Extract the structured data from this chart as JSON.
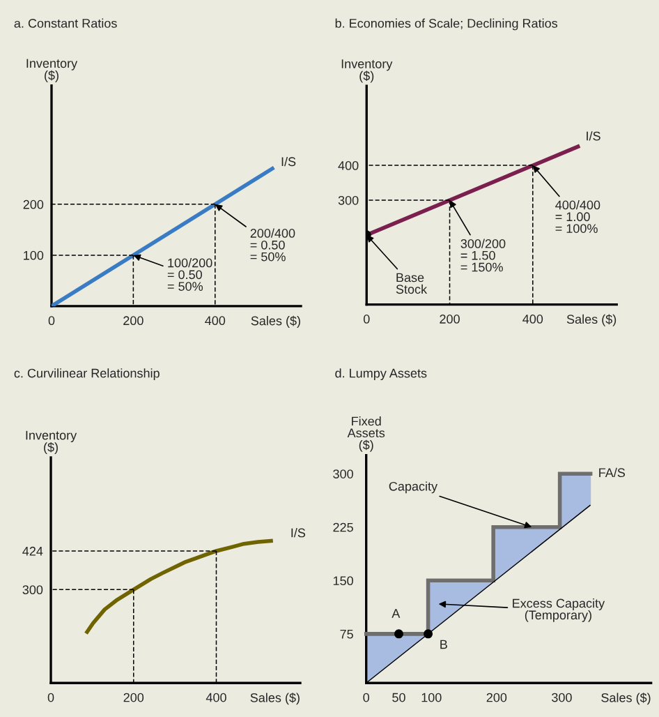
{
  "chart_data": [
    {
      "type": "line",
      "title": "a. Constant Ratios",
      "xlabel": "Sales ($)",
      "ylabel": "Inventory\n($)",
      "xlim": [
        0,
        610
      ],
      "ylim": [
        0,
        433
      ],
      "xticks": [
        0,
        200,
        400
      ],
      "yticks": [
        100,
        200
      ],
      "series": [
        {
          "x": [
            200,
            0
          ],
          "values": [
            100,
            100
          ],
          "color": "#000000",
          "line_style": "dashed"
        },
        {
          "x": [
            200,
            200
          ],
          "values": [
            100,
            0
          ],
          "color": "#000000",
          "line_style": "dashed"
        },
        {
          "x": [
            400,
            0
          ],
          "values": [
            200,
            200
          ],
          "color": "#000000",
          "line_style": "dashed"
        },
        {
          "x": [
            400,
            400
          ],
          "values": [
            200,
            0
          ],
          "color": "#000000",
          "line_style": "dashed"
        },
        {
          "x": [
            0,
            544
          ],
          "values": [
            0,
            272
          ],
          "color": "#3a7cc4",
          "line_style": "solid"
        }
      ],
      "annotations": [
        {
          "text": "I/S",
          "x": 544,
          "y": 272
        },
        {
          "text": "100/200\n= 0.50\n= 50%",
          "x": 200,
          "y": 100
        },
        {
          "text": "200/400\n= 0.50\n= 50%",
          "x": 400,
          "y": 200
        }
      ]
    },
    {
      "type": "line",
      "title": "b. Economies of Scale; Declining Ratios",
      "xlabel": "Sales ($)",
      "ylabel": "Inventory\n($)",
      "xlim": [
        0,
        602
      ],
      "ylim": [
        0,
        628
      ],
      "xticks": [
        0,
        200,
        400
      ],
      "yticks": [
        300,
        400
      ],
      "series": [
        {
          "x": [
            200,
            0
          ],
          "values": [
            300,
            300
          ],
          "color": "#000000",
          "line_style": "dashed"
        },
        {
          "x": [
            200,
            200
          ],
          "values": [
            300,
            0
          ],
          "color": "#000000",
          "line_style": "dashed"
        },
        {
          "x": [
            400,
            0
          ],
          "values": [
            400,
            400
          ],
          "color": "#000000",
          "line_style": "dashed"
        },
        {
          "x": [
            400,
            400
          ],
          "values": [
            400,
            0
          ],
          "color": "#000000",
          "line_style": "dashed"
        },
        {
          "x": [
            0,
            513
          ],
          "values": [
            200,
            456
          ],
          "color": "#7a1f4e",
          "line_style": "solid"
        },
        {
          "type": "scatter",
          "x": [
            0
          ],
          "values": [
            200
          ],
          "color": "#000000",
          "marker": "circle"
        }
      ],
      "annotations": [
        {
          "text": "I/S",
          "x": 513,
          "y": 456
        },
        {
          "text": "Base\nStock",
          "x": 0,
          "y": 200
        },
        {
          "text": "300/200\n= 1.50\n= 150%",
          "x": 200,
          "y": 300
        },
        {
          "text": "400/400\n= 1.00\n= 100%",
          "x": 400,
          "y": 400
        }
      ]
    },
    {
      "type": "line",
      "title": "c. Curvilinear Relationship",
      "xlabel": "Sales ($)",
      "ylabel": "Inventory\n($)",
      "xlim": [
        0,
        603
      ],
      "ylim": [
        0,
        724
      ],
      "xticks": [
        0,
        200,
        400
      ],
      "yticks": [
        300,
        424
      ],
      "series": [
        {
          "x": [
            200,
            0
          ],
          "values": [
            300,
            300
          ],
          "color": "#000000",
          "line_style": "dashed"
        },
        {
          "x": [
            200,
            200
          ],
          "values": [
            300,
            0
          ],
          "color": "#000000",
          "line_style": "dashed"
        },
        {
          "x": [
            400,
            0
          ],
          "values": [
            424,
            424
          ],
          "color": "#000000",
          "line_style": "dashed"
        },
        {
          "x": [
            400,
            400
          ],
          "values": [
            424,
            0
          ],
          "color": "#000000",
          "line_style": "dashed"
        },
        {
          "x": [
            85,
            102,
            130,
            158,
            200,
            242,
            270,
            326,
            366,
            400,
            439,
            467,
            501,
            537
          ],
          "values": [
            159,
            192,
            236,
            265,
            300,
            334,
            353,
            389,
            408,
            424,
            437,
            447,
            453,
            457
          ],
          "color": "#706400",
          "line_style": "solid"
        }
      ],
      "annotations": [
        {
          "text": "I/S",
          "x": 537,
          "y": 457
        }
      ]
    },
    {
      "type": "line",
      "title": "d. Lumpy Assets",
      "xlabel": "Sales ($)",
      "ylabel": "Fixed\nAssets\n($)",
      "xlim": [
        0,
        437
      ],
      "ylim": [
        6,
        326
      ],
      "xticks": [
        0,
        50,
        100,
        200,
        300
      ],
      "yticks": [
        75,
        150,
        225,
        300
      ],
      "series": [
        {
          "type": "step",
          "x": [
            0,
            95,
            195,
            297,
            344
          ],
          "values": [
            75,
            150,
            225,
            300,
            300
          ],
          "lower": [
            6,
            75,
            148,
            222,
            256
          ],
          "upper": [
            75,
            150,
            225,
            300,
            300
          ],
          "color": "#6e6e6e",
          "colors": [
            "#a8bbe0",
            "#a8bbe0",
            "#a8bbe0",
            "#a8bbe0",
            "#a8bbe0"
          ],
          "line_style": "solid"
        },
        {
          "x": [
            0,
            344
          ],
          "values": [
            6,
            256
          ],
          "color": "#000000",
          "line_style": "solid"
        },
        {
          "type": "scatter",
          "x": [
            50,
            95
          ],
          "values": [
            75,
            75
          ],
          "color": "#000000",
          "marker": "circle"
        }
      ],
      "annotations": [
        {
          "text": "FA/S",
          "x": 344,
          "y": 300
        },
        {
          "text": "Capacity",
          "x": 254,
          "y": 225
        },
        "Excess Capacity\n(Temporary)",
        {
          "text": "A",
          "x": 50,
          "y": 75
        },
        {
          "text": "B",
          "x": 95,
          "y": 75
        }
      ]
    }
  ]
}
